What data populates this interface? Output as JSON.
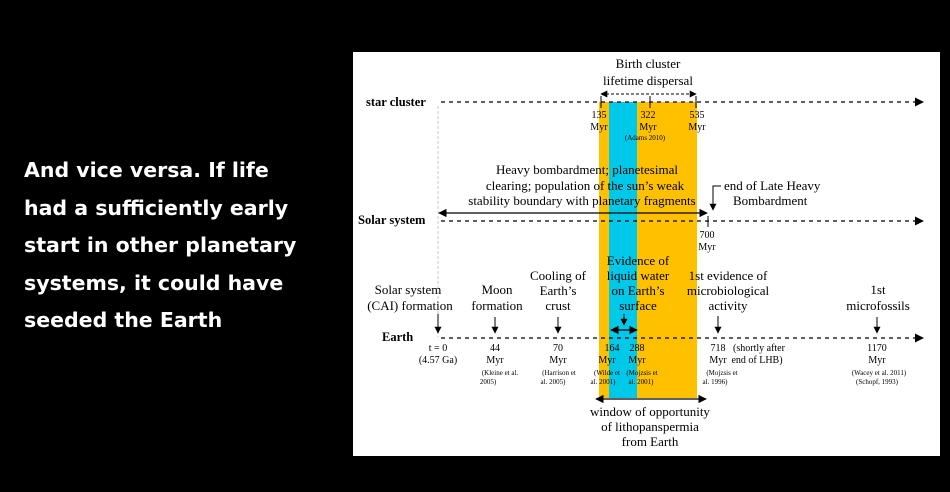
{
  "slide": {
    "text_lines": [
      "And vice versa. If life",
      "had a sufficiently early",
      "start in other planetary",
      "systems, it could have",
      "seeded the Earth"
    ]
  },
  "colors": {
    "background": "#000000",
    "slide_text": "#ffffff",
    "dispersal_band": "#ffc000",
    "liquid_water_band": "#00c8e8"
  },
  "diagram": {
    "rows": {
      "star_cluster": "star cluster",
      "solar_system": "Solar system",
      "earth": "Earth"
    },
    "star_cluster": {
      "band_title": [
        "Birth cluster",
        "lifetime dispersal"
      ],
      "ticks": [
        {
          "value": "135",
          "unit": "Myr"
        },
        {
          "value": "322",
          "unit": "Myr",
          "ref": "(Adams 2010)"
        },
        {
          "value": "535",
          "unit": "Myr"
        }
      ]
    },
    "solar_system": {
      "bombardment": [
        "Heavy bombardment; planetesimal",
        "clearing; population of the sun’s weak",
        "stability boundary with planetary fragments"
      ],
      "lhb": [
        "end of Late Heavy",
        "Bombardment"
      ],
      "lhb_tick": {
        "value": "700",
        "unit": "Myr"
      }
    },
    "earth": {
      "events": [
        {
          "label": [
            "Solar system",
            "(CAI) formation"
          ],
          "value": "t = 0",
          "unit": "(4.57 Ga)"
        },
        {
          "label": [
            "Moon",
            "formation"
          ],
          "value": "44",
          "unit": "Myr",
          "ref": [
            "(Kleine et al.",
            "2005)"
          ]
        },
        {
          "label": [
            "Cooling of",
            "Earth’s",
            "crust"
          ],
          "value": "70",
          "unit": "Myr",
          "ref": [
            "(Harrison et",
            "al. 2005)"
          ]
        },
        {
          "label": [
            "Evidence of",
            "liquid water",
            "on Earth’s",
            "surface"
          ],
          "value": "164",
          "unit": "Myr",
          "ref": [
            "(Wilde et",
            "al. 2001)"
          ],
          "value2": "288",
          "unit2": "Myr",
          "ref2": [
            "(Mojzsis et",
            "al. 2001)"
          ]
        },
        {
          "label": [
            "1st evidence of",
            "microbiological",
            "activity"
          ],
          "value": "718",
          "unit": "Myr",
          "note": [
            "(shortly after",
            "end of LHB)"
          ],
          "ref": [
            "(Mojzsis et",
            "al. 1996)"
          ]
        },
        {
          "label": [
            "1st",
            "microfossils"
          ],
          "value": "1170",
          "unit": "Myr",
          "ref": [
            "(Wacey et al. 2011)",
            "(Schopf, 1993)"
          ]
        }
      ],
      "window": [
        "window of opportunity",
        "of lithopanspermia",
        "from Earth"
      ]
    }
  }
}
